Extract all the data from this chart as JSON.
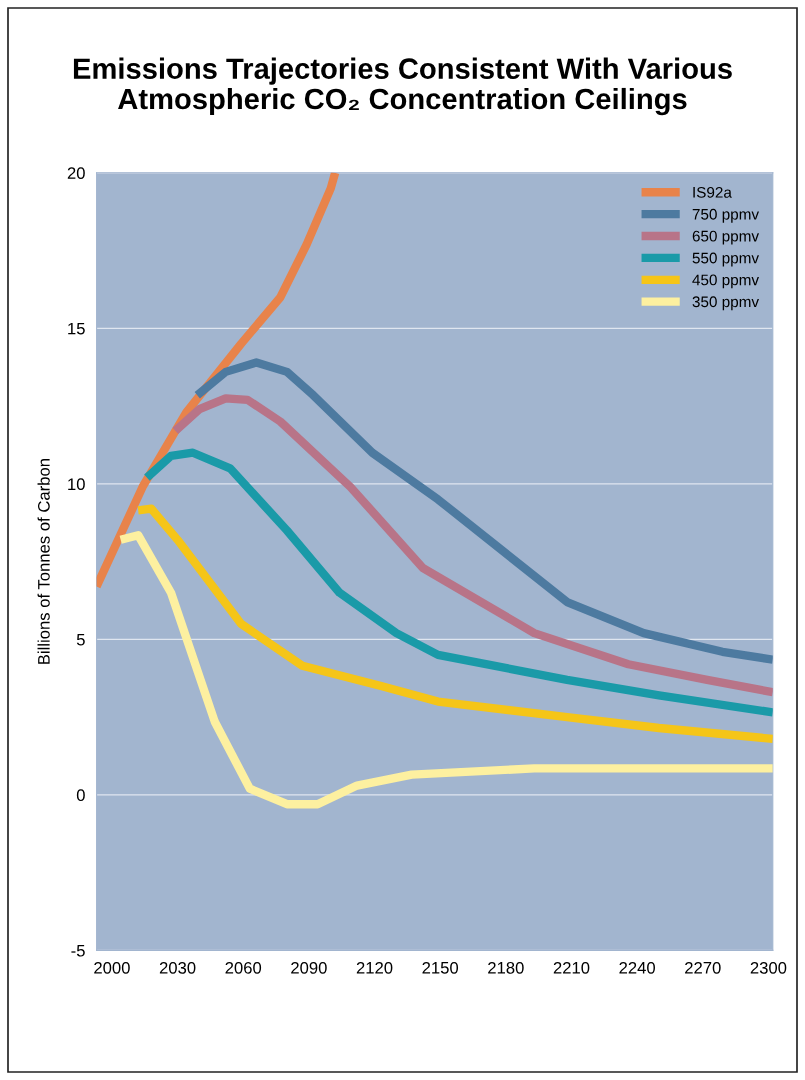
{
  "chart_data": {
    "type": "line",
    "title": "Emissions Trajectories Consistent With Various\nAtmospheric CO₂ Concentration Ceilings",
    "ylabel": "Billions of Tonnes of Carbon",
    "xlim": [
      1993,
      2302
    ],
    "xticks": [
      2000,
      2030,
      2060,
      2090,
      2120,
      2150,
      2180,
      2210,
      2240,
      2270,
      2300
    ],
    "ylim": [
      -5,
      20
    ],
    "yticks": [
      -5,
      0,
      5,
      10,
      15,
      20
    ],
    "grid": "y",
    "legend": "top right",
    "series": [
      {
        "name": "IS92a",
        "color": "#e8834a",
        "x": [
          1993,
          2014,
          2034,
          2059,
          2077,
          2089,
          2100,
          2102
        ],
        "values": [
          6.7,
          9.9,
          12.3,
          14.5,
          16.0,
          17.7,
          19.5,
          20
        ]
      },
      {
        "name": "750 ppmv",
        "color": "#4d7aa0",
        "x": [
          2039,
          2052,
          2066,
          2080,
          2092,
          2119,
          2149,
          2208,
          2243,
          2279,
          2302
        ],
        "values": [
          12.85,
          13.6,
          13.9,
          13.6,
          12.85,
          11.0,
          9.5,
          6.2,
          5.2,
          4.6,
          4.35
        ]
      },
      {
        "name": "650 ppmv",
        "color": "#b87488",
        "x": [
          2029,
          2040,
          2052,
          2062,
          2077,
          2109,
          2142,
          2193,
          2236,
          2272,
          2302
        ],
        "values": [
          11.7,
          12.4,
          12.75,
          12.7,
          12.0,
          9.9,
          7.3,
          5.2,
          4.2,
          3.7,
          3.3
        ]
      },
      {
        "name": "550 ppmv",
        "color": "#1a9aa8",
        "x": [
          2016,
          2027,
          2037,
          2054,
          2080,
          2104,
          2130,
          2149,
          2208,
          2250,
          2302
        ],
        "values": [
          10.2,
          10.9,
          11.0,
          10.5,
          8.5,
          6.5,
          5.2,
          4.5,
          3.7,
          3.2,
          2.65
        ]
      },
      {
        "name": "450 ppmv",
        "color": "#f5c518",
        "x": [
          2012,
          2018,
          2030,
          2059,
          2087,
          2123,
          2149,
          2208,
          2250,
          2302
        ],
        "values": [
          9.15,
          9.2,
          8.2,
          5.5,
          4.15,
          3.5,
          3.0,
          2.5,
          2.15,
          1.8
        ]
      },
      {
        "name": "350 ppmv",
        "color": "#fdf0a0",
        "x": [
          2004,
          2012,
          2027,
          2047,
          2063,
          2080,
          2094,
          2112,
          2137,
          2193,
          2250,
          2302
        ],
        "values": [
          8.2,
          8.35,
          6.5,
          2.35,
          0.2,
          -0.3,
          -0.3,
          0.3,
          0.65,
          0.85,
          0.85,
          0.85
        ]
      }
    ]
  }
}
